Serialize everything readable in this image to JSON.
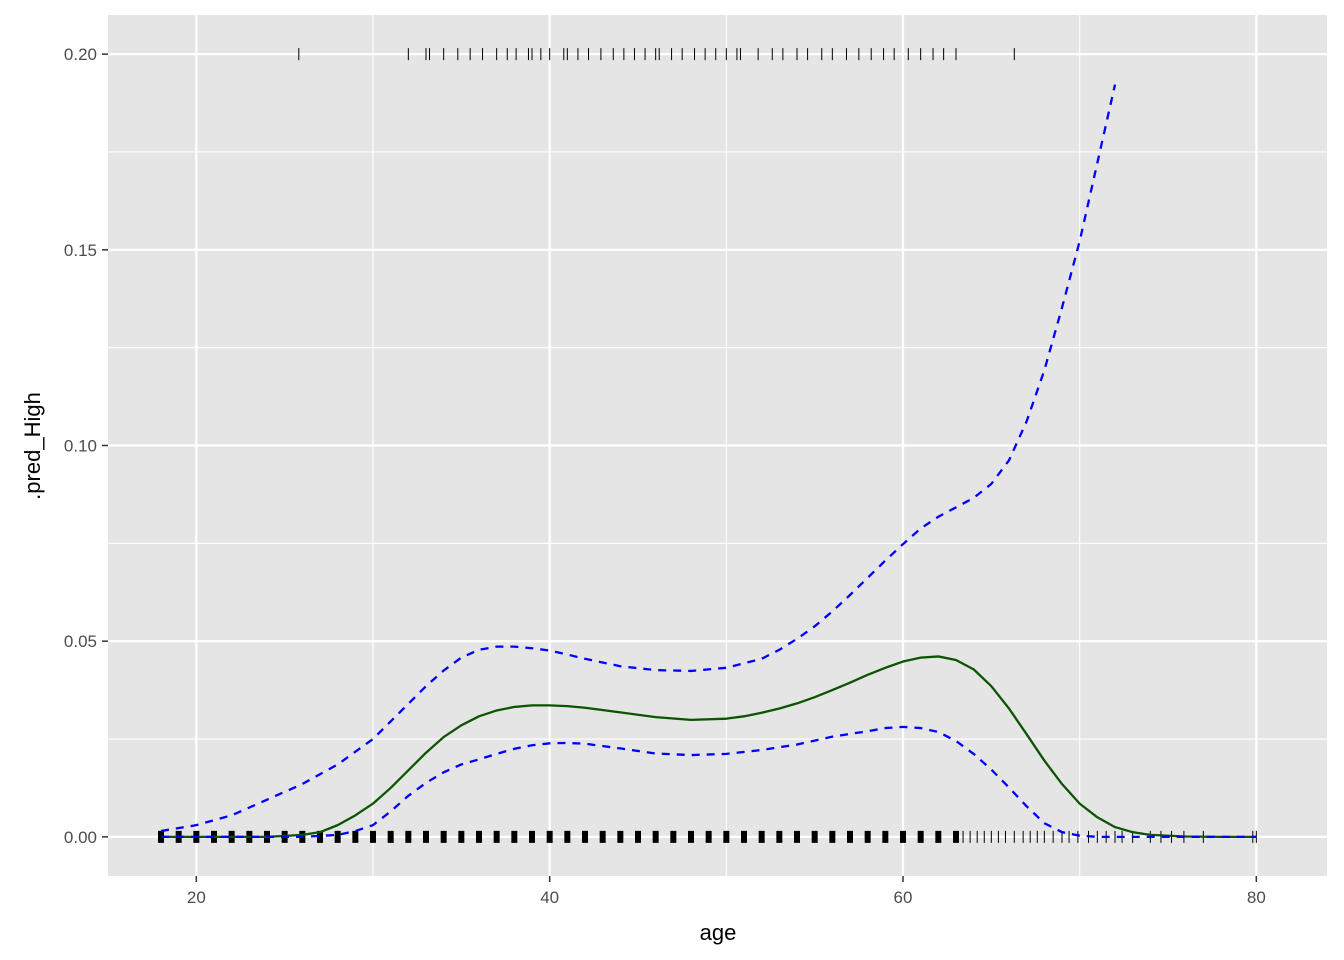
{
  "chart_data": {
    "type": "line",
    "title": "",
    "xlabel": "age",
    "ylabel": ".pred_High",
    "xlim": [
      15,
      84
    ],
    "ylim": [
      -0.01,
      0.21
    ],
    "x_ticks": [
      20,
      40,
      60,
      80
    ],
    "y_ticks": [
      0.0,
      0.05,
      0.1,
      0.15,
      0.2
    ],
    "x_tick_labels": [
      "20",
      "40",
      "60",
      "80"
    ],
    "y_tick_labels": [
      "0.00",
      "0.05",
      "0.10",
      "0.15",
      "0.20"
    ],
    "grid": true,
    "legend": "none",
    "colors": {
      "panel": "#e5e5e5",
      "grid": "#ffffff",
      "fit_line": "#0b5400",
      "ci_lines": "#0000ff",
      "rug": "#000000"
    },
    "series": [
      {
        "style": "solid",
        "x": [
          18,
          20,
          22,
          24,
          26,
          27,
          28,
          29,
          30,
          31,
          32,
          33,
          34,
          35,
          36,
          37,
          38,
          39,
          40,
          41,
          42,
          44,
          46,
          48,
          50,
          51,
          52,
          53,
          54,
          55,
          56,
          57,
          58,
          59,
          60,
          61,
          62,
          63,
          64,
          65,
          66,
          67,
          68,
          69,
          70,
          71,
          72,
          73,
          74,
          76,
          78,
          80
        ],
        "values": [
          0.0,
          0.0,
          0.0,
          0.0,
          0.0005,
          0.0012,
          0.003,
          0.0055,
          0.0085,
          0.0125,
          0.017,
          0.0215,
          0.0255,
          0.0285,
          0.0308,
          0.0323,
          0.0332,
          0.0336,
          0.0336,
          0.0334,
          0.033,
          0.0318,
          0.0306,
          0.0299,
          0.0302,
          0.0308,
          0.0317,
          0.0328,
          0.0341,
          0.0357,
          0.0375,
          0.0394,
          0.0414,
          0.0432,
          0.0448,
          0.0458,
          0.0461,
          0.0452,
          0.0428,
          0.0385,
          0.0328,
          0.0262,
          0.0195,
          0.0135,
          0.0085,
          0.005,
          0.0025,
          0.0012,
          0.0005,
          0.0001,
          0.0,
          0.0
        ]
      },
      {
        "style": "dashed",
        "x": [
          18,
          20,
          22,
          24,
          26,
          28,
          30,
          31,
          32,
          33,
          34,
          35,
          36,
          37,
          38,
          39,
          40,
          41,
          42,
          44,
          46,
          48,
          50,
          52,
          53,
          54,
          55,
          56,
          57,
          58,
          59,
          60,
          61,
          62,
          63,
          64,
          65,
          66,
          67,
          68,
          69,
          70,
          71,
          72
        ],
        "values": [
          0.0015,
          0.003,
          0.0055,
          0.0095,
          0.0135,
          0.0185,
          0.025,
          0.0295,
          0.034,
          0.0385,
          0.0425,
          0.0458,
          0.0478,
          0.0486,
          0.0486,
          0.0482,
          0.0476,
          0.0466,
          0.0455,
          0.0436,
          0.0426,
          0.0424,
          0.0432,
          0.0455,
          0.0478,
          0.0506,
          0.0538,
          0.0576,
          0.0618,
          0.0662,
          0.0706,
          0.0748,
          0.0788,
          0.0818,
          0.0842,
          0.0866,
          0.0902,
          0.0962,
          0.1062,
          0.1192,
          0.1352,
          0.1522,
          0.1722,
          0.1922
        ]
      },
      {
        "style": "dashed",
        "x": [
          18,
          20,
          22,
          24,
          26,
          28,
          29,
          30,
          31,
          32,
          33,
          34,
          35,
          36,
          37,
          38,
          39,
          40,
          41,
          42,
          44,
          46,
          48,
          50,
          52,
          54,
          56,
          58,
          59,
          60,
          61,
          62,
          63,
          64,
          65,
          66,
          67,
          68,
          69,
          70,
          71,
          72,
          74,
          76,
          78,
          80
        ],
        "values": [
          0.0,
          0.0,
          0.0,
          0.0,
          0.0,
          0.0005,
          0.0015,
          0.003,
          0.0065,
          0.0105,
          0.0138,
          0.0165,
          0.0185,
          0.0198,
          0.0212,
          0.0225,
          0.0234,
          0.0239,
          0.024,
          0.0238,
          0.0226,
          0.0213,
          0.0209,
          0.0212,
          0.0222,
          0.0236,
          0.0256,
          0.027,
          0.0278,
          0.0281,
          0.0278,
          0.0268,
          0.0245,
          0.0212,
          0.0172,
          0.0126,
          0.0078,
          0.0035,
          0.0012,
          0.0003,
          0.0,
          0.0,
          0.0,
          0.0,
          0.0,
          0.0
        ]
      }
    ],
    "rug_top": {
      "y": 0.2,
      "x": [
        25.8,
        32.0,
        33.0,
        33.2,
        34.0,
        34.8,
        35.5,
        36.2,
        37.0,
        37.6,
        38.1,
        38.8,
        39.0,
        39.5,
        40.0,
        40.8,
        41.0,
        41.6,
        42.2,
        42.9,
        43.6,
        44.2,
        44.8,
        45.4,
        46.0,
        46.2,
        46.9,
        47.5,
        48.2,
        48.8,
        49.4,
        50.0,
        50.6,
        50.8,
        51.8,
        52.6,
        53.2,
        54.0,
        54.6,
        55.4,
        56.0,
        56.8,
        57.5,
        58.2,
        58.9,
        59.5,
        60.3,
        61.0,
        61.7,
        62.3,
        63.0,
        66.3
      ]
    },
    "rug_bottom": {
      "y": 0.0,
      "x_dense": [
        18,
        63
      ],
      "x_sparse": [
        63.4,
        63.8,
        64.2,
        64.6,
        65.0,
        65.4,
        65.8,
        66.3,
        66.8,
        67.2,
        67.6,
        68.0,
        68.5,
        69.0,
        69.4,
        69.9,
        70.5,
        71.0,
        71.5,
        72.0,
        72.4,
        73.0,
        74.0,
        74.6,
        75.2,
        75.9,
        77.0,
        79.8,
        80.0
      ]
    }
  }
}
